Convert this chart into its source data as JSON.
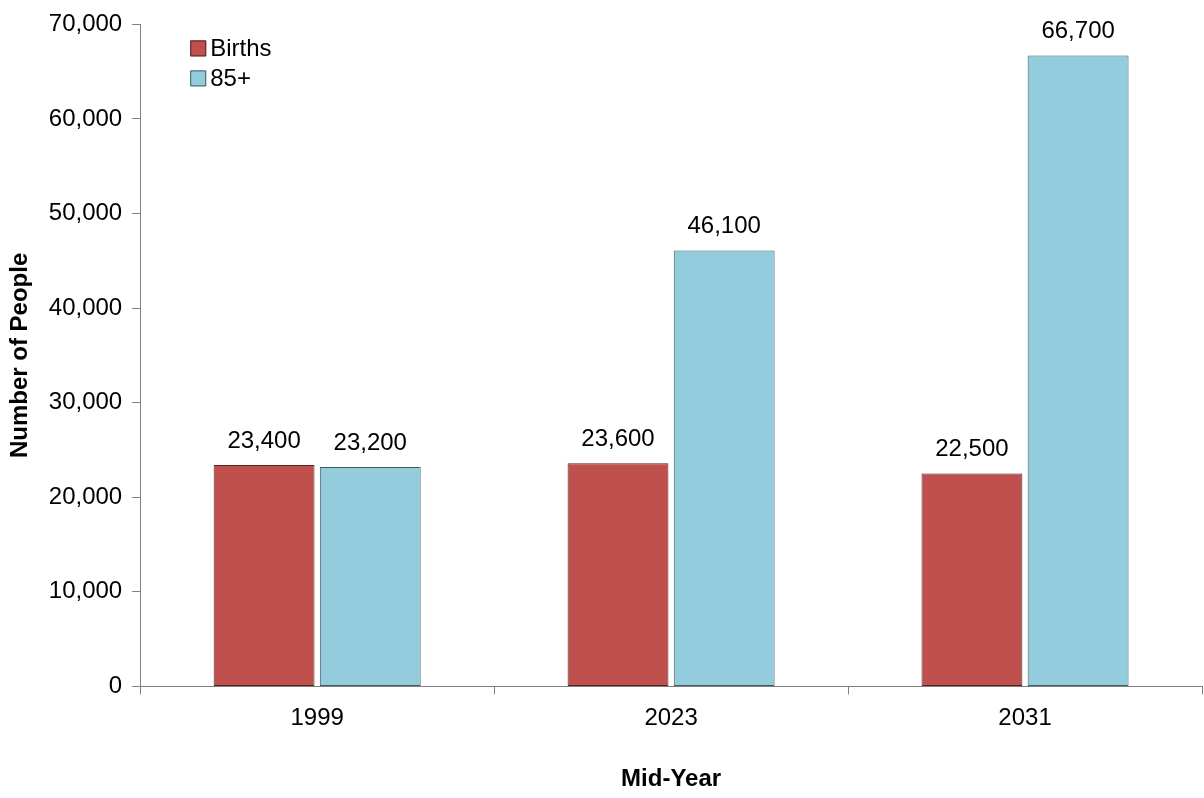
{
  "chart_data": {
    "type": "bar",
    "xlabel": "Mid-Year",
    "ylabel": "Number of People",
    "categories": [
      "1999",
      "2023",
      "2031"
    ],
    "series": [
      {
        "name": "Births",
        "color": "#c0504d",
        "values": [
          23400,
          23600,
          22500
        ],
        "value_labels": [
          "23,400",
          "23,600",
          "22,500"
        ]
      },
      {
        "name": "85+",
        "color": "#93cddd",
        "values": [
          23200,
          46100,
          66700
        ],
        "value_labels": [
          "23,200",
          "46,100",
          "66,700"
        ]
      }
    ],
    "ylim": [
      0,
      70000
    ],
    "yticks": [
      0,
      {
        "value": 10000,
        "label": "10,000"
      },
      {
        "value": 20000,
        "label": "20,000"
      },
      {
        "value": 30000,
        "label": "30,000"
      },
      {
        "value": 40000,
        "label": "40,000"
      },
      {
        "value": 50000,
        "label": "50,000"
      },
      {
        "value": 60000,
        "label": "60,000"
      },
      {
        "value": 70000,
        "label": "70,000"
      }
    ],
    "grid": false,
    "legend": "top left"
  }
}
